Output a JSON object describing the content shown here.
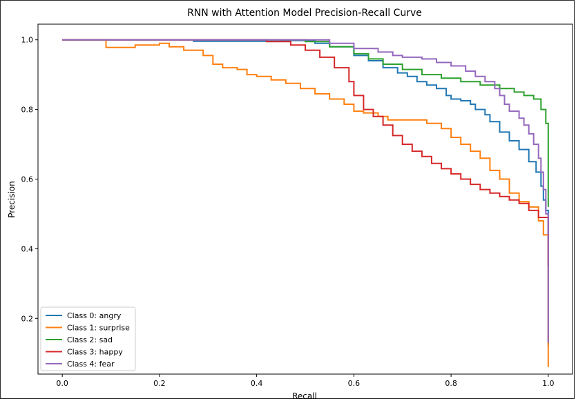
{
  "chart_data": {
    "type": "line",
    "title": "RNN with Attention Model Precision-Recall Curve",
    "xlabel": "Recall",
    "ylabel": "Precision",
    "xlim": [
      -0.05,
      1.05
    ],
    "ylim": [
      0.04,
      1.045
    ],
    "xticks": [
      "0.0",
      "0.2",
      "0.4",
      "0.6",
      "0.8",
      "1.0"
    ],
    "yticks": [
      "0.2",
      "0.4",
      "0.6",
      "0.8",
      "1.0"
    ],
    "grid": false,
    "legend_position": "lower-left",
    "series": [
      {
        "name": "Class 0: angry",
        "color": "#1f77b4",
        "x": [
          0.0,
          0.27,
          0.27,
          0.45,
          0.52,
          0.55,
          0.6,
          0.63,
          0.66,
          0.69,
          0.71,
          0.73,
          0.75,
          0.77,
          0.79,
          0.8,
          0.82,
          0.84,
          0.85,
          0.87,
          0.88,
          0.9,
          0.92,
          0.94,
          0.96,
          0.975,
          0.985,
          0.99,
          0.995,
          1.0
        ],
        "y": [
          1.0,
          1.0,
          0.996,
          0.998,
          0.99,
          0.98,
          0.955,
          0.94,
          0.92,
          0.905,
          0.895,
          0.88,
          0.87,
          0.86,
          0.84,
          0.83,
          0.825,
          0.815,
          0.8,
          0.785,
          0.765,
          0.735,
          0.71,
          0.685,
          0.65,
          0.62,
          0.58,
          0.54,
          0.51,
          0.12
        ]
      },
      {
        "name": "Class 1: surprise",
        "color": "#ff7f0e",
        "x": [
          0.0,
          0.09,
          0.09,
          0.15,
          0.2,
          0.22,
          0.25,
          0.29,
          0.31,
          0.33,
          0.36,
          0.38,
          0.4,
          0.43,
          0.46,
          0.49,
          0.52,
          0.55,
          0.58,
          0.6,
          0.62,
          0.65,
          0.67,
          0.69,
          0.71,
          0.72,
          0.75,
          0.78,
          0.8,
          0.82,
          0.84,
          0.86,
          0.88,
          0.9,
          0.92,
          0.94,
          0.96,
          0.98,
          0.99,
          1.0,
          1.0
        ],
        "y": [
          1.0,
          1.0,
          0.978,
          0.985,
          0.99,
          0.98,
          0.97,
          0.955,
          0.93,
          0.92,
          0.915,
          0.9,
          0.895,
          0.885,
          0.875,
          0.86,
          0.845,
          0.83,
          0.815,
          0.795,
          0.79,
          0.78,
          0.77,
          0.77,
          0.77,
          0.77,
          0.76,
          0.745,
          0.72,
          0.7,
          0.68,
          0.66,
          0.625,
          0.6,
          0.56,
          0.535,
          0.52,
          0.48,
          0.44,
          0.39,
          0.06
        ]
      },
      {
        "name": "Class 2: sad",
        "color": "#2ca02c",
        "x": [
          0.0,
          0.4,
          0.5,
          0.55,
          0.6,
          0.63,
          0.66,
          0.7,
          0.74,
          0.78,
          0.82,
          0.86,
          0.9,
          0.93,
          0.95,
          0.97,
          0.985,
          0.995,
          1.0,
          1.0
        ],
        "y": [
          1.0,
          1.0,
          0.995,
          0.98,
          0.96,
          0.945,
          0.93,
          0.915,
          0.9,
          0.89,
          0.88,
          0.87,
          0.86,
          0.85,
          0.84,
          0.83,
          0.8,
          0.76,
          0.7,
          0.52
        ]
      },
      {
        "name": "Class 3: happy",
        "color": "#d62728",
        "x": [
          0.0,
          0.38,
          0.42,
          0.47,
          0.5,
          0.53,
          0.56,
          0.59,
          0.6,
          0.62,
          0.64,
          0.66,
          0.68,
          0.7,
          0.72,
          0.74,
          0.76,
          0.78,
          0.8,
          0.82,
          0.84,
          0.86,
          0.88,
          0.9,
          0.92,
          0.94,
          0.96,
          0.98,
          1.0,
          1.0
        ],
        "y": [
          1.0,
          1.0,
          0.995,
          0.985,
          0.97,
          0.95,
          0.92,
          0.88,
          0.84,
          0.8,
          0.78,
          0.755,
          0.725,
          0.7,
          0.68,
          0.665,
          0.645,
          0.63,
          0.615,
          0.6,
          0.585,
          0.57,
          0.56,
          0.55,
          0.54,
          0.53,
          0.51,
          0.49,
          0.46,
          0.35
        ]
      },
      {
        "name": "Class 4: fear",
        "color": "#9467bd",
        "x": [
          0.0,
          0.5,
          0.55,
          0.6,
          0.65,
          0.68,
          0.7,
          0.74,
          0.77,
          0.8,
          0.83,
          0.85,
          0.87,
          0.89,
          0.9,
          0.91,
          0.92,
          0.94,
          0.95,
          0.96,
          0.97,
          0.98,
          0.985,
          0.99,
          0.995,
          1.0,
          1.0
        ],
        "y": [
          1.0,
          1.0,
          0.99,
          0.975,
          0.965,
          0.955,
          0.95,
          0.945,
          0.935,
          0.925,
          0.91,
          0.895,
          0.88,
          0.86,
          0.84,
          0.815,
          0.795,
          0.775,
          0.755,
          0.73,
          0.7,
          0.66,
          0.62,
          0.57,
          0.5,
          0.4,
          0.13
        ]
      }
    ]
  }
}
